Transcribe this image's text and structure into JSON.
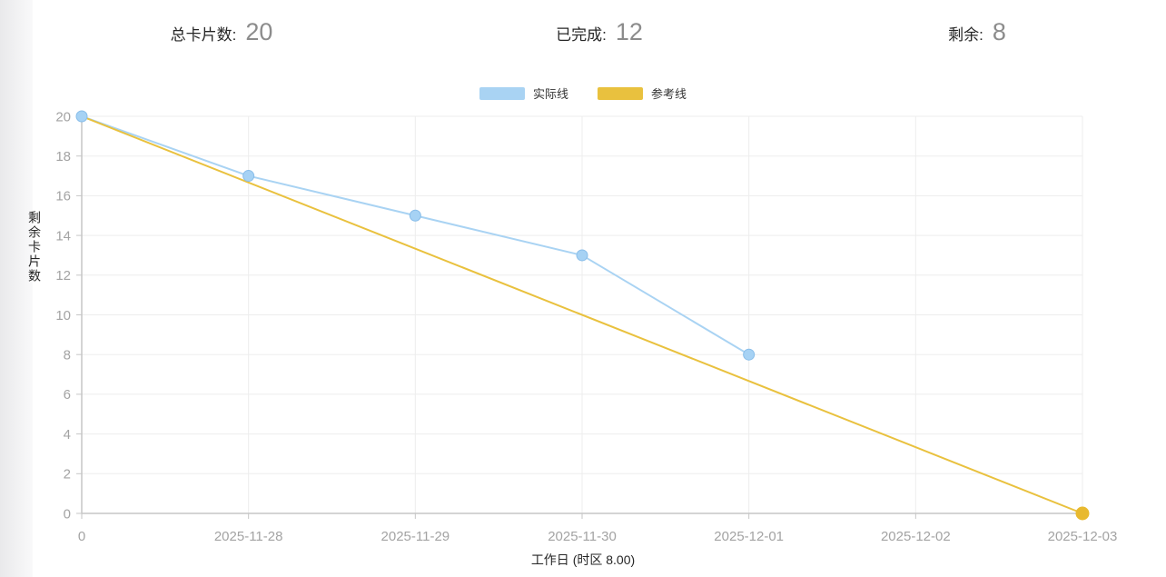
{
  "stats": {
    "total": {
      "label": "总卡片数:",
      "value": "20"
    },
    "completed": {
      "label": "已完成:",
      "value": "12"
    },
    "remaining": {
      "label": "剩余:",
      "value": "8"
    }
  },
  "legend": [
    {
      "label": "实际线",
      "color": "#a9d3f3"
    },
    {
      "label": "参考线",
      "color": "#e9c13e"
    }
  ],
  "chart_data": {
    "type": "line",
    "title": "",
    "xlabel": "工作日 (时区 8.00)",
    "ylabel": "剩余卡片数",
    "x_ticks": [
      "0",
      "2025-11-28",
      "2025-11-29",
      "2025-11-30",
      "2025-12-01",
      "2025-12-02",
      "2025-12-03"
    ],
    "y_ticks": [
      0,
      2,
      4,
      6,
      8,
      10,
      12,
      14,
      16,
      18,
      20
    ],
    "ylim": [
      0,
      20
    ],
    "grid": true,
    "legend_position": "top-center",
    "series": [
      {
        "name": "实际线",
        "color": "#a9d3f3",
        "marker_fill": "#a6d2f4",
        "marker_stroke": "#88bde9",
        "marker_radius": 6,
        "x_index": [
          0,
          1,
          2,
          3,
          4
        ],
        "values": [
          20,
          17,
          15,
          13,
          8
        ],
        "markers": "all"
      },
      {
        "name": "参考线",
        "color": "#e9c13e",
        "marker_fill": "#e8b92f",
        "marker_stroke": "#e8b92f",
        "marker_radius": 7,
        "x_index": [
          0,
          6
        ],
        "values": [
          20,
          0
        ],
        "markers": "end"
      }
    ],
    "colors": {
      "axis": "#c6c6c6",
      "grid": "#ededed",
      "tick_text": "#a3a3a3"
    }
  }
}
